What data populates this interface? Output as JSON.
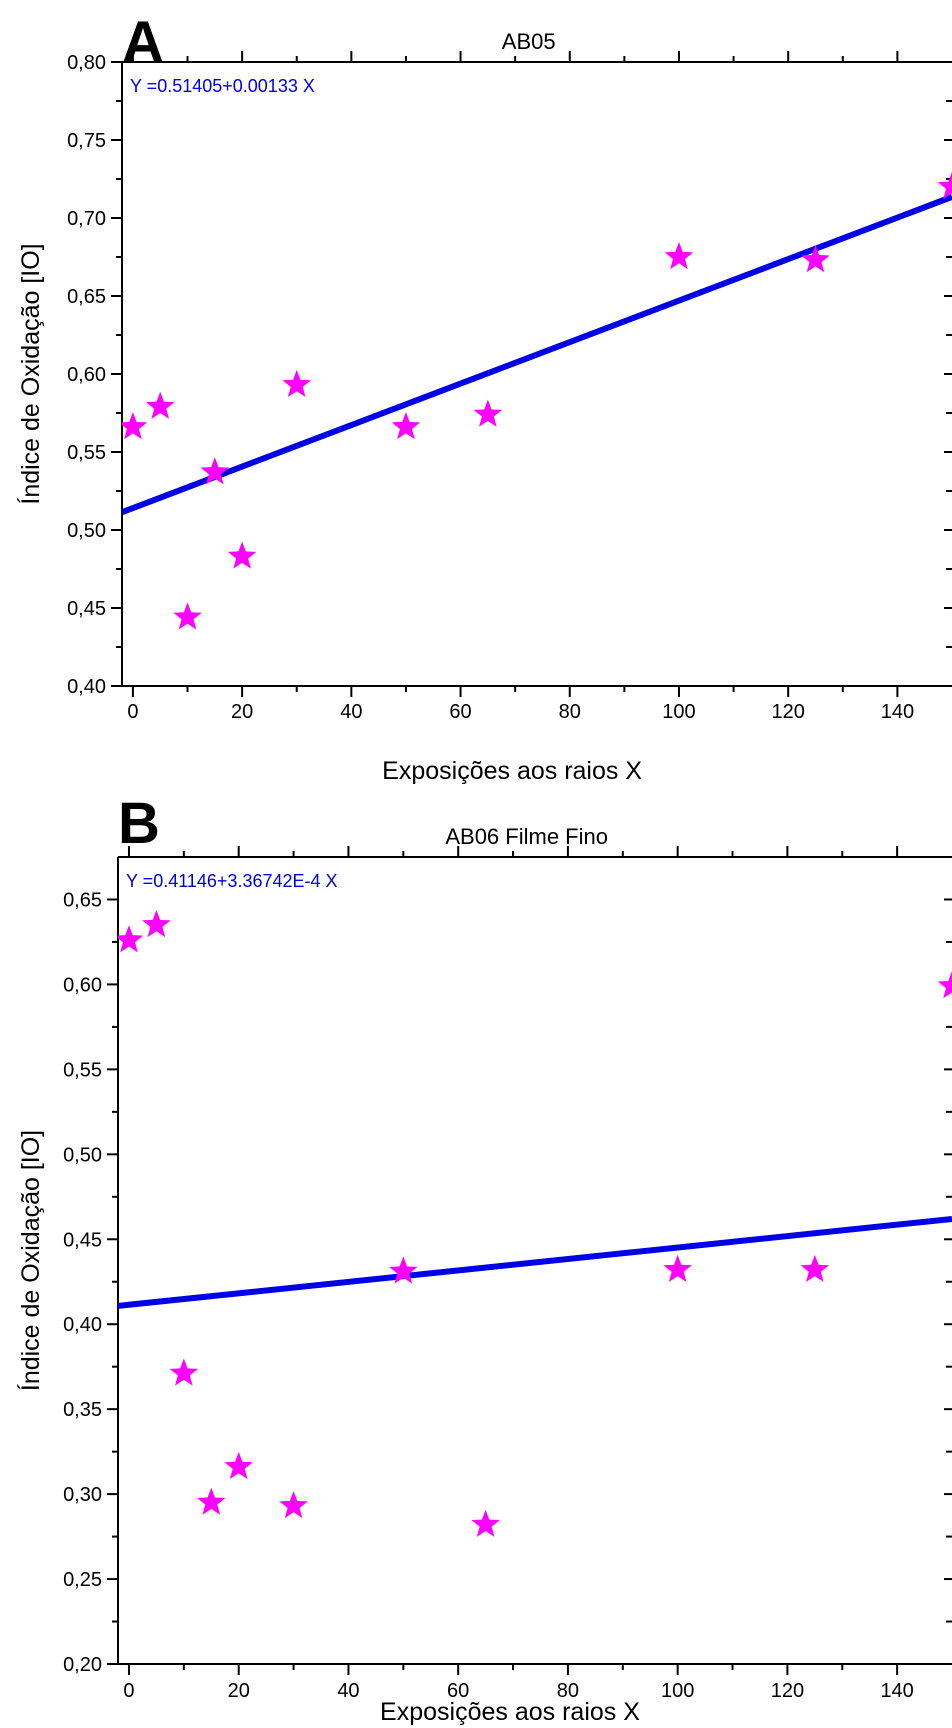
{
  "colors": {
    "marker": "#ff00ff",
    "fit_line": "#0000e6",
    "equation": "#0000e6",
    "axis": "#000000"
  },
  "chart_data": [
    {
      "panel_label": "A",
      "type": "scatter",
      "title": "AB05",
      "xlabel": "Exposições aos raios X",
      "ylabel": "Índice de Oxidação [IO]",
      "xlim": [
        -2,
        150
      ],
      "ylim": [
        0.4,
        0.8
      ],
      "x_ticks": [
        0,
        20,
        40,
        60,
        80,
        100,
        120,
        140
      ],
      "x_tick_labels": [
        "0",
        "20",
        "40",
        "60",
        "80",
        "100",
        "120",
        "140"
      ],
      "y_ticks": [
        0.4,
        0.45,
        0.5,
        0.55,
        0.6,
        0.65,
        0.7,
        0.75,
        0.8
      ],
      "y_tick_labels": [
        "0,40",
        "0,45",
        "0,50",
        "0,55",
        "0,60",
        "0,65",
        "0,70",
        "0,75",
        "0,80"
      ],
      "marker": "star",
      "series": [
        {
          "x": [
            0,
            5,
            10,
            15,
            20,
            30,
            50,
            65,
            100,
            125,
            150
          ],
          "y": [
            0.566,
            0.579,
            0.444,
            0.537,
            0.483,
            0.593,
            0.566,
            0.574,
            0.675,
            0.673,
            0.72
          ]
        }
      ],
      "fit": {
        "intercept": 0.51405,
        "slope": 0.00133,
        "equation": "Y =0.51405+0.00133 X"
      },
      "grid": false
    },
    {
      "panel_label": "B",
      "type": "scatter",
      "title": "AB06 Filme Fino",
      "xlabel": "Exposições aos raios X",
      "ylabel": "Índice de Oxidação [IO]",
      "xlim": [
        -2,
        150
      ],
      "ylim": [
        0.2,
        0.675
      ],
      "x_ticks": [
        0,
        20,
        40,
        60,
        80,
        100,
        120,
        140
      ],
      "x_tick_labels": [
        "0",
        "20",
        "40",
        "60",
        "80",
        "100",
        "120",
        "140"
      ],
      "y_ticks": [
        0.2,
        0.25,
        0.3,
        0.35,
        0.4,
        0.45,
        0.5,
        0.55,
        0.6,
        0.65
      ],
      "y_tick_labels": [
        "0,20",
        "0,25",
        "0,30",
        "0,35",
        "0,40",
        "0,45",
        "0,50",
        "0,55",
        "0,60",
        "0,65"
      ],
      "marker": "star",
      "series": [
        {
          "x": [
            0,
            5,
            10,
            15,
            20,
            30,
            50,
            65,
            100,
            125,
            150
          ],
          "y": [
            0.626,
            0.635,
            0.371,
            0.295,
            0.316,
            0.293,
            0.431,
            0.282,
            0.432,
            0.432,
            0.599
          ]
        }
      ],
      "fit": {
        "intercept": 0.41146,
        "slope": 0.000336742,
        "equation": "Y =0.41146+3.36742E-4 X"
      },
      "grid": false
    }
  ]
}
